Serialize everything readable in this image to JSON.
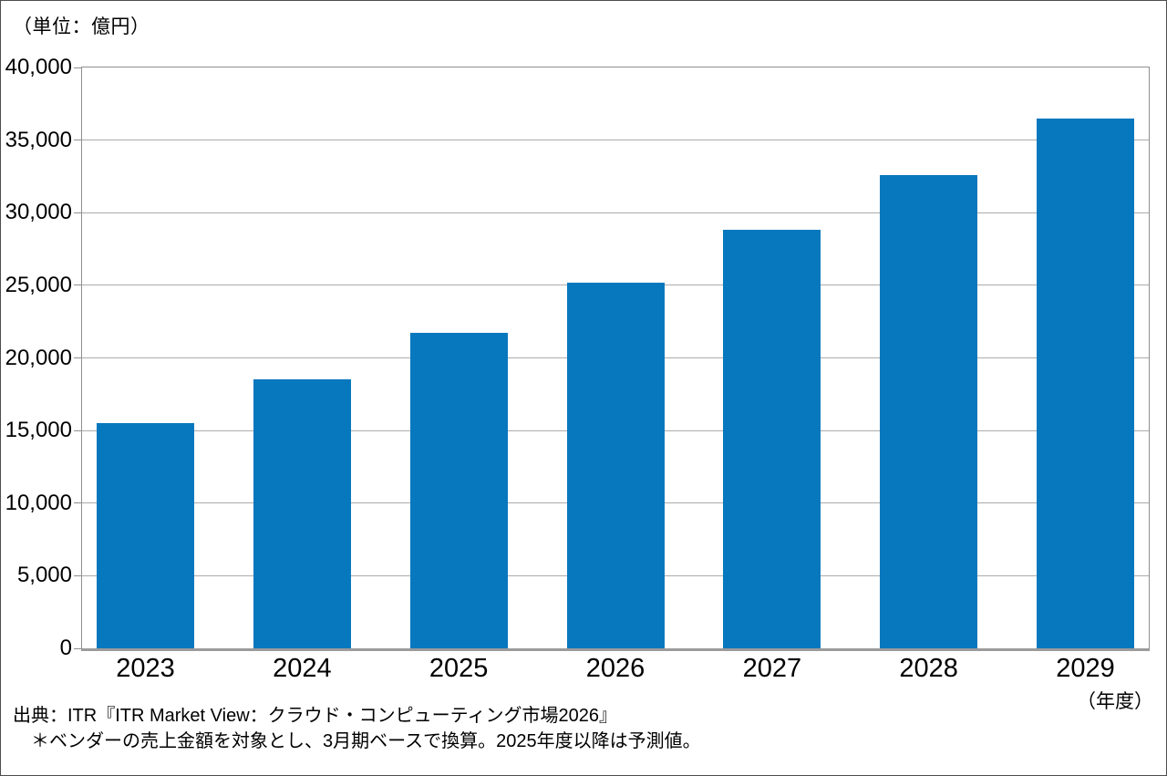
{
  "chart_data": {
    "type": "bar",
    "title": "",
    "unit_label": "（単位：億円）",
    "x_axis_unit": "（年度）",
    "categories": [
      "2023",
      "2024",
      "2025",
      "2026",
      "2027",
      "2028",
      "2029"
    ],
    "values": [
      15500,
      18500,
      21700,
      25200,
      28800,
      32600,
      36500
    ],
    "xlabel": "年度",
    "ylabel": "億円",
    "ylim": [
      0,
      40000
    ],
    "y_tick_interval": 5000,
    "y_tick_labels": [
      "0",
      "5,000",
      "10,000",
      "15,000",
      "20,000",
      "25,000",
      "30,000",
      "35,000",
      "40,000"
    ],
    "grid": true,
    "legend": "none",
    "bar_color": "#0878be",
    "gridline_color": "#ababab",
    "frame_color": "#8f8f8f",
    "source": "出典：ITR『ITR Market View：クラウド・コンピューティング市場2026』",
    "note": "＊ベンダーの売上金額を対象とし、3月期ベースで換算。2025年度以降は予測値。"
  }
}
